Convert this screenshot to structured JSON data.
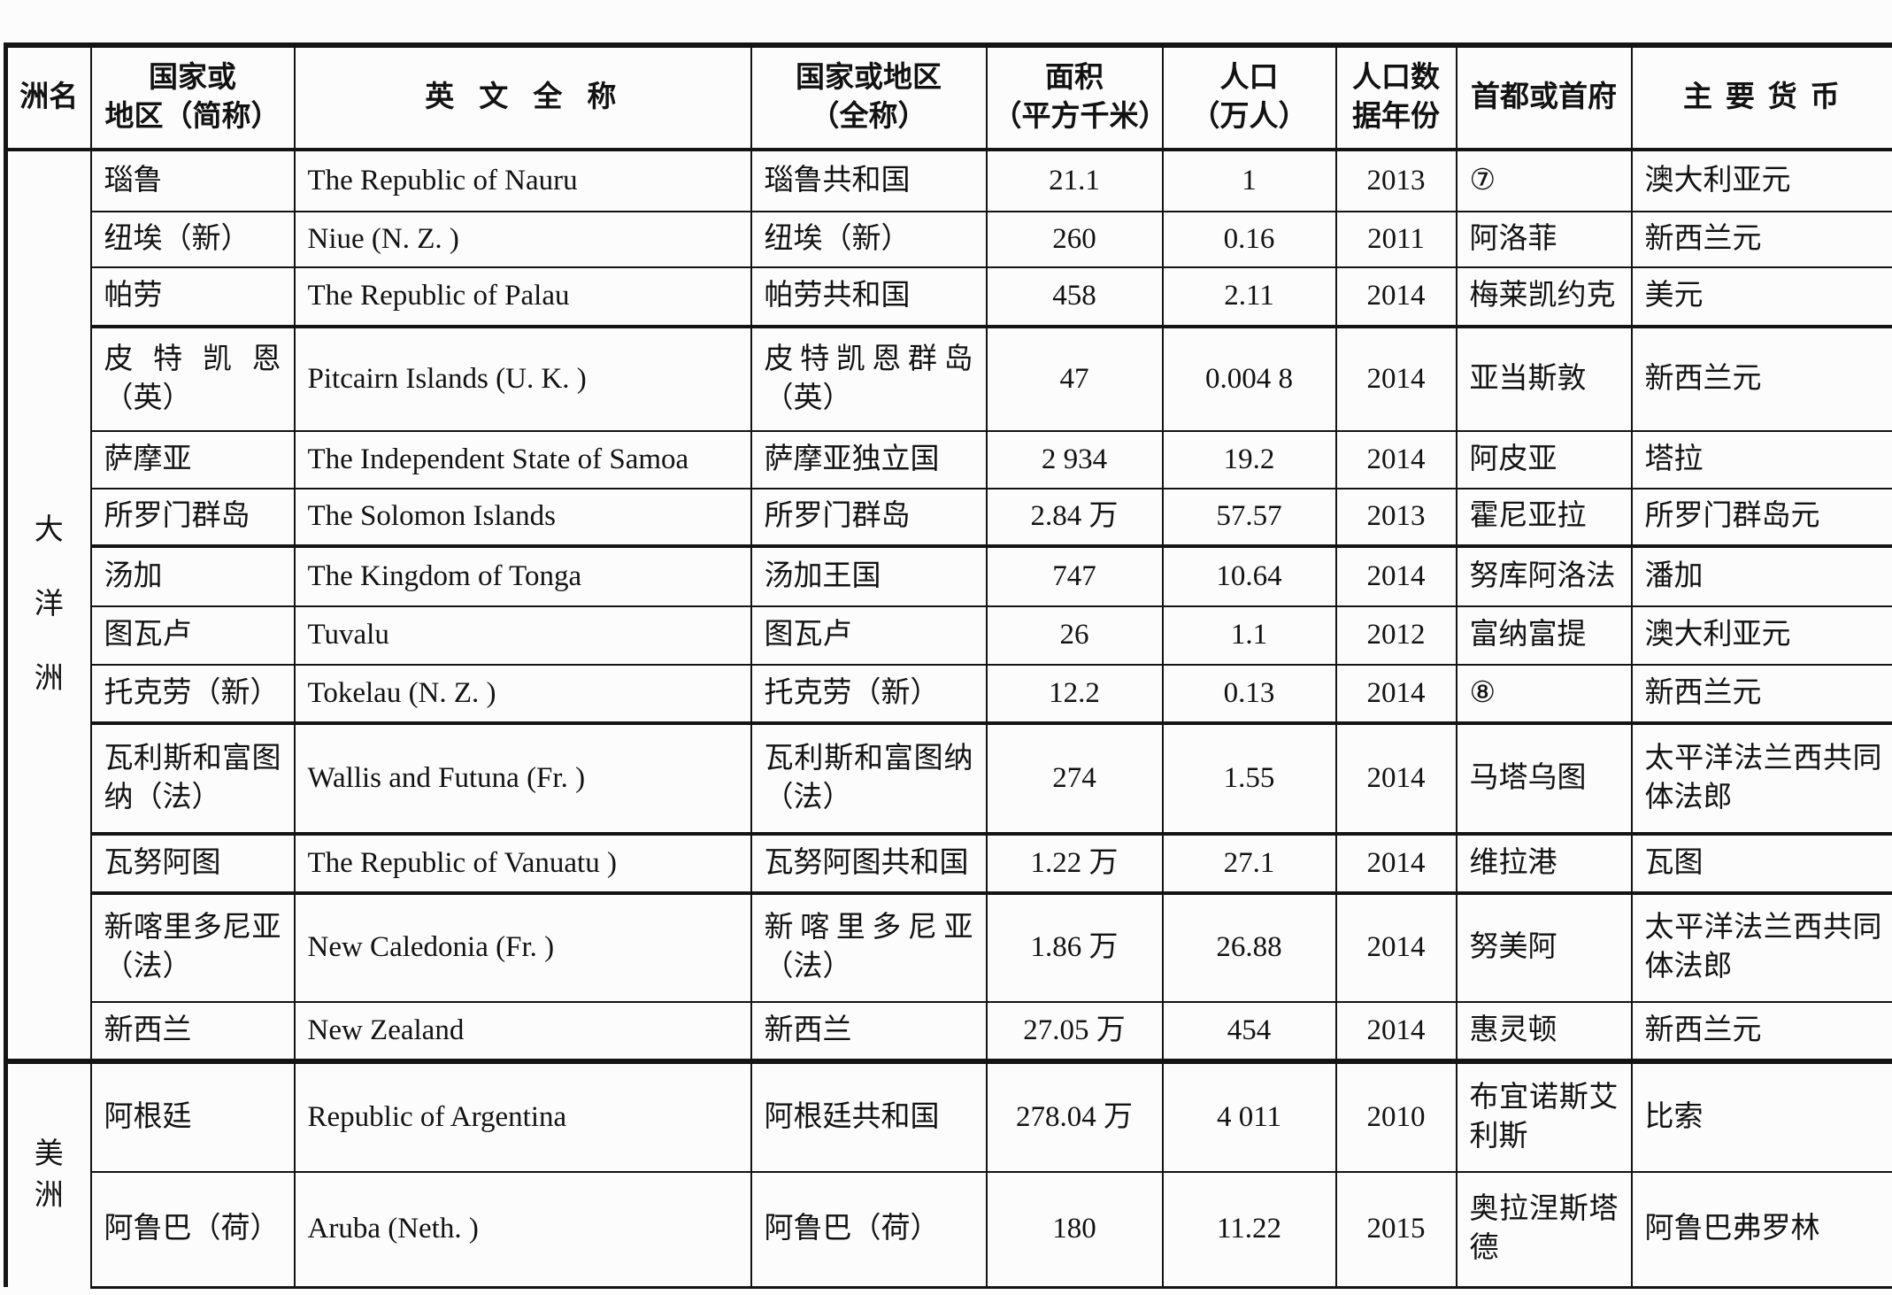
{
  "page": {
    "background_color": "#fcfcfc",
    "text_color": "#121212",
    "border_color": "#141414"
  },
  "table": {
    "headers": [
      "洲名",
      "国家或\n地区（简称）",
      "英文全称",
      "国家或地区\n（全称）",
      "面积\n（平方千米）",
      "人口\n（万人）",
      "人口数\n据年份",
      "首都或首府",
      "主要货币"
    ],
    "sections": [
      {
        "continent": "大洋洲",
        "continent_chars": [
          "大",
          "洋",
          "洲"
        ],
        "rows": [
          {
            "short_name": "瑙鲁",
            "english_name": "The Republic of Nauru",
            "full_name": "瑙鲁共和国",
            "area": "21.1",
            "population": "1",
            "year": "2013",
            "capital": "⑦",
            "currency": "澳大利亚元"
          },
          {
            "short_name": "纽埃（新）",
            "english_name": "Niue (N. Z. )",
            "full_name": "纽埃（新）",
            "area": "260",
            "population": "0.16",
            "year": "2011",
            "capital": "阿洛菲",
            "currency": "新西兰元"
          },
          {
            "short_name": "帕劳",
            "english_name": "The Republic of Palau",
            "full_name": "帕劳共和国",
            "area": "458",
            "population": "2.11",
            "year": "2014",
            "capital": "梅莱凯约克",
            "currency": "美元"
          },
          {
            "short_name": "皮特凯恩（英）",
            "english_name": "Pitcairn Islands (U. K. )",
            "full_name": "皮特凯恩群岛（英）",
            "area": "47",
            "population": "0.004 8",
            "year": "2014",
            "capital": "亚当斯敦",
            "currency": "新西兰元"
          },
          {
            "short_name": "萨摩亚",
            "english_name": "The Independent State of Samoa",
            "full_name": "萨摩亚独立国",
            "area": "2 934",
            "population": "19.2",
            "year": "2014",
            "capital": "阿皮亚",
            "currency": "塔拉"
          },
          {
            "short_name": "所罗门群岛",
            "english_name": "The Solomon Islands",
            "full_name": "所罗门群岛",
            "area": "2.84 万",
            "population": "57.57",
            "year": "2013",
            "capital": "霍尼亚拉",
            "currency": "所罗门群岛元"
          },
          {
            "short_name": "汤加",
            "english_name": "The Kingdom of Tonga",
            "full_name": "汤加王国",
            "area": "747",
            "population": "10.64",
            "year": "2014",
            "capital": "努库阿洛法",
            "currency": "潘加"
          },
          {
            "short_name": "图瓦卢",
            "english_name": "Tuvalu",
            "full_name": "图瓦卢",
            "area": "26",
            "population": "1.1",
            "year": "2012",
            "capital": "富纳富提",
            "currency": "澳大利亚元"
          },
          {
            "short_name": "托克劳（新）",
            "english_name": "Tokelau (N. Z. )",
            "full_name": "托克劳（新）",
            "area": "12.2",
            "population": "0.13",
            "year": "2014",
            "capital": "⑧",
            "currency": "新西兰元"
          },
          {
            "short_name": "瓦利斯和富图纳（法）",
            "english_name": "Wallis and Futuna (Fr. )",
            "full_name": "瓦利斯和富图纳（法）",
            "area": "274",
            "population": "1.55",
            "year": "2014",
            "capital": "马塔乌图",
            "currency": "太平洋法兰西共同体法郎"
          },
          {
            "short_name": "瓦努阿图",
            "english_name": "The Republic of Vanuatu )",
            "full_name": "瓦努阿图共和国",
            "area": "1.22 万",
            "population": "27.1",
            "year": "2014",
            "capital": "维拉港",
            "currency": "瓦图"
          },
          {
            "short_name": "新喀里多尼亚（法）",
            "english_name": "New Caledonia (Fr. )",
            "full_name": "新喀里多尼亚（法）",
            "area": "1.86 万",
            "population": "26.88",
            "year": "2014",
            "capital": "努美阿",
            "currency": "太平洋法兰西共同体法郎"
          },
          {
            "short_name": "新西兰",
            "english_name": "New Zealand",
            "full_name": "新西兰",
            "area": "27.05 万",
            "population": "454",
            "year": "2014",
            "capital": "惠灵顿",
            "currency": "新西兰元"
          }
        ]
      },
      {
        "continent": "美洲",
        "continent_chars": [
          "美",
          "洲"
        ],
        "rows": [
          {
            "short_name": "阿根廷",
            "english_name": "Republic of Argentina",
            "full_name": "阿根廷共和国",
            "area": "278.04 万",
            "population": "4 011",
            "year": "2010",
            "capital": "布宜诺斯艾利斯",
            "currency": "比索"
          },
          {
            "short_name": "阿鲁巴（荷）",
            "english_name": "Aruba (Neth. )",
            "full_name": "阿鲁巴（荷）",
            "area": "180",
            "population": "11.22",
            "year": "2015",
            "capital": "奥拉涅斯塔德",
            "currency": "阿鲁巴弗罗林"
          }
        ]
      }
    ]
  }
}
